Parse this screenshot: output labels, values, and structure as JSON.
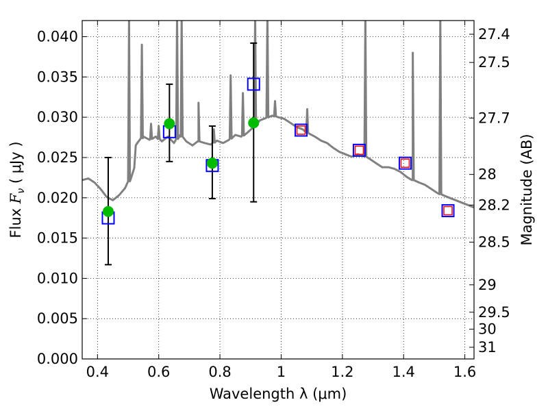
{
  "chart_data": {
    "type": "scatter",
    "xlabel": "Wavelength  λ (μm)",
    "ylabel": "Flux  F_ν  ( μJy )",
    "ylabel_parts": {
      "prefix": "Flux  ",
      "symbol": "F",
      "subscript": "ν",
      "unit": "  ( μJy )"
    },
    "y2label": "Magnitude (AB)",
    "xlim": [
      0.35,
      1.63
    ],
    "ylim": [
      0.0,
      0.042
    ],
    "grid": true,
    "x_ticks": [
      0.4,
      0.6,
      0.8,
      1.0,
      1.2,
      1.4,
      1.6
    ],
    "x_tick_labels": [
      "0.4",
      "0.6",
      "0.8",
      "1",
      "1.2",
      "1.4",
      "1.6"
    ],
    "y_ticks": [
      0.0,
      0.005,
      0.01,
      0.015,
      0.02,
      0.025,
      0.03,
      0.035,
      0.04
    ],
    "y_tick_labels": [
      "0.000",
      "0.005",
      "0.010",
      "0.015",
      "0.020",
      "0.025",
      "0.030",
      "0.035",
      "0.040"
    ],
    "y2_ticks": [
      {
        "label": "27.4",
        "flux": 0.0403
      },
      {
        "label": "27.5",
        "flux": 0.0368
      },
      {
        "label": "27.7",
        "flux": 0.0299
      },
      {
        "label": "28",
        "flux": 0.0229
      },
      {
        "label": "28.2",
        "flux": 0.0191
      },
      {
        "label": "28.5",
        "flux": 0.0145
      },
      {
        "label": "29",
        "flux": 0.0092
      },
      {
        "label": "29.5",
        "flux": 0.0058
      },
      {
        "label": "30",
        "flux": 0.0037
      },
      {
        "label": "31",
        "flux": 0.00145
      }
    ],
    "series": [
      {
        "role": "model spectrum",
        "style": "line",
        "color": "#808080",
        "points": [
          [
            0.35,
            0.0222
          ],
          [
            0.37,
            0.0224
          ],
          [
            0.39,
            0.0219
          ],
          [
            0.41,
            0.0211
          ],
          [
            0.43,
            0.0201
          ],
          [
            0.45,
            0.0197
          ],
          [
            0.47,
            0.0203
          ],
          [
            0.49,
            0.0212
          ],
          [
            0.51,
            0.0225
          ],
          [
            0.52,
            0.0237
          ],
          [
            0.525,
            0.0265
          ],
          [
            0.53,
            0.0268
          ],
          [
            0.55,
            0.0276
          ],
          [
            0.57,
            0.0272
          ],
          [
            0.59,
            0.0276
          ],
          [
            0.61,
            0.027
          ],
          [
            0.63,
            0.0276
          ],
          [
            0.65,
            0.0268
          ],
          [
            0.67,
            0.0278
          ],
          [
            0.69,
            0.027
          ],
          [
            0.71,
            0.0265
          ],
          [
            0.73,
            0.027
          ],
          [
            0.75,
            0.0268
          ],
          [
            0.77,
            0.0266
          ],
          [
            0.79,
            0.0271
          ],
          [
            0.81,
            0.0268
          ],
          [
            0.83,
            0.0272
          ],
          [
            0.85,
            0.0278
          ],
          [
            0.87,
            0.0276
          ],
          [
            0.89,
            0.0281
          ],
          [
            0.91,
            0.0288
          ],
          [
            0.93,
            0.0296
          ],
          [
            0.95,
            0.0299
          ],
          [
            0.97,
            0.0302
          ],
          [
            0.99,
            0.03
          ],
          [
            1.01,
            0.0298
          ],
          [
            1.03,
            0.0293
          ],
          [
            1.05,
            0.0288
          ],
          [
            1.07,
            0.0285
          ],
          [
            1.09,
            0.028
          ],
          [
            1.11,
            0.0276
          ],
          [
            1.13,
            0.0271
          ],
          [
            1.15,
            0.0268
          ],
          [
            1.17,
            0.0262
          ],
          [
            1.19,
            0.0257
          ],
          [
            1.21,
            0.0254
          ],
          [
            1.23,
            0.0251
          ],
          [
            1.25,
            0.0254
          ],
          [
            1.27,
            0.0252
          ],
          [
            1.29,
            0.0248
          ],
          [
            1.31,
            0.0243
          ],
          [
            1.33,
            0.0238
          ],
          [
            1.35,
            0.0238
          ],
          [
            1.37,
            0.0236
          ],
          [
            1.39,
            0.0232
          ],
          [
            1.41,
            0.0226
          ],
          [
            1.43,
            0.0222
          ],
          [
            1.45,
            0.0219
          ],
          [
            1.47,
            0.0216
          ],
          [
            1.49,
            0.0211
          ],
          [
            1.51,
            0.0206
          ],
          [
            1.53,
            0.0203
          ],
          [
            1.55,
            0.02
          ],
          [
            1.57,
            0.0197
          ],
          [
            1.59,
            0.0194
          ],
          [
            1.61,
            0.0191
          ],
          [
            1.63,
            0.0188
          ]
        ],
        "emission_lines": [
          {
            "x": 0.503,
            "peak": 0.0425
          },
          {
            "x": 0.545,
            "peak": 0.039
          },
          {
            "x": 0.575,
            "peak": 0.0292
          },
          {
            "x": 0.6,
            "peak": 0.0289
          },
          {
            "x": 0.66,
            "peak": 0.0425
          },
          {
            "x": 0.675,
            "peak": 0.0425
          },
          {
            "x": 0.73,
            "peak": 0.0318
          },
          {
            "x": 0.78,
            "peak": 0.0285
          },
          {
            "x": 0.835,
            "peak": 0.0352
          },
          {
            "x": 0.875,
            "peak": 0.033
          },
          {
            "x": 0.915,
            "peak": 0.0425
          },
          {
            "x": 0.955,
            "peak": 0.0425
          },
          {
            "x": 0.98,
            "peak": 0.032
          },
          {
            "x": 1.085,
            "peak": 0.031
          },
          {
            "x": 1.275,
            "peak": 0.0425
          },
          {
            "x": 1.43,
            "peak": 0.038
          },
          {
            "x": 1.52,
            "peak": 0.0425
          }
        ]
      },
      {
        "role": "observed photometry",
        "style": "marker-circle",
        "color": "#00bb00",
        "points": [
          {
            "x": 0.435,
            "y": 0.0183,
            "yerr_low": 0.0117,
            "yerr_high": 0.025
          },
          {
            "x": 0.635,
            "y": 0.0292,
            "yerr_low": 0.0245,
            "yerr_high": 0.0341
          },
          {
            "x": 0.775,
            "y": 0.0243,
            "yerr_low": 0.0199,
            "yerr_high": 0.0289
          },
          {
            "x": 0.91,
            "y": 0.0293,
            "yerr_low": 0.0195,
            "yerr_high": 0.0392
          }
        ]
      },
      {
        "role": "model photometry",
        "style": "marker-square",
        "color": "#0000ff",
        "points": [
          {
            "x": 0.435,
            "y": 0.0175
          },
          {
            "x": 0.635,
            "y": 0.0282
          },
          {
            "x": 0.775,
            "y": 0.024
          },
          {
            "x": 0.91,
            "y": 0.0341
          },
          {
            "x": 1.065,
            "y": 0.0284
          },
          {
            "x": 1.255,
            "y": 0.0259
          },
          {
            "x": 1.405,
            "y": 0.0243
          },
          {
            "x": 1.545,
            "y": 0.0184
          }
        ]
      },
      {
        "role": "predicted photometry",
        "style": "marker-square",
        "color": "#ff0000",
        "points": [
          {
            "x": 1.065,
            "y": 0.0284
          },
          {
            "x": 1.255,
            "y": 0.0259
          },
          {
            "x": 1.405,
            "y": 0.0243
          },
          {
            "x": 1.545,
            "y": 0.0184
          }
        ]
      }
    ]
  }
}
